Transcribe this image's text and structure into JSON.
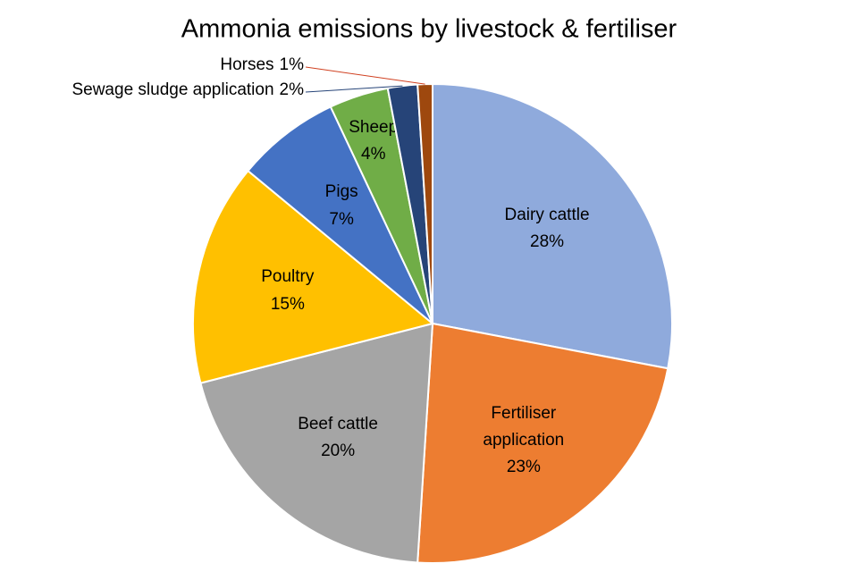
{
  "chart_data": {
    "type": "pie",
    "title": "Ammonia emissions by livestock & fertiliser",
    "categories": [
      "Dairy cattle",
      "Fertiliser application",
      "Beef cattle",
      "Poultry",
      "Pigs",
      "Sheep",
      "Sewage sludge application",
      "Horses"
    ],
    "values": [
      28,
      23,
      20,
      15,
      7,
      4,
      2,
      1
    ],
    "value_labels": [
      "28%",
      "23%",
      "20%",
      "15%",
      "7%",
      "4%",
      "2%",
      "1%"
    ],
    "colors": [
      "#8faadc",
      "#ed7d31",
      "#a5a5a5",
      "#ffc000",
      "#4472c4",
      "#70ad47",
      "#264478",
      "#9e480e"
    ]
  }
}
